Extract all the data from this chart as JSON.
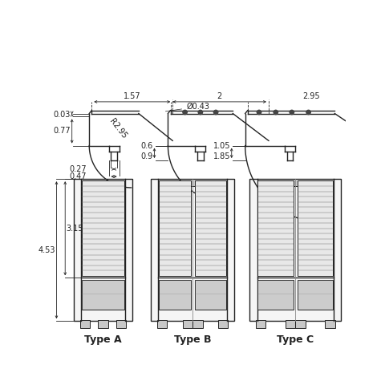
{
  "bg": "#ffffff",
  "lc": "#222222",
  "gray_fill": "#d8d8d8",
  "roller_fill": "#e0e0e0",
  "roller_line": "#666666",
  "dim_color": "#222222",
  "types": [
    "Type A",
    "Type B",
    "Type C"
  ],
  "typeA_label": "1.57",
  "typeA_diam": "Ø0.43",
  "typeA_h": "0.77",
  "typeA_th": "0.03",
  "typeA_sw1": "0.27",
  "typeA_sw2": "0.47",
  "typeA_radius": "R2.95",
  "typeB_w": "2",
  "typeB_h1": "0.6",
  "typeB_h2": "0.9",
  "typeC_w": "2.95",
  "typeC_h1": "1.05",
  "typeC_h2": "1.85",
  "mod_h_total": "4.53",
  "mod_h_upper": "3.15"
}
